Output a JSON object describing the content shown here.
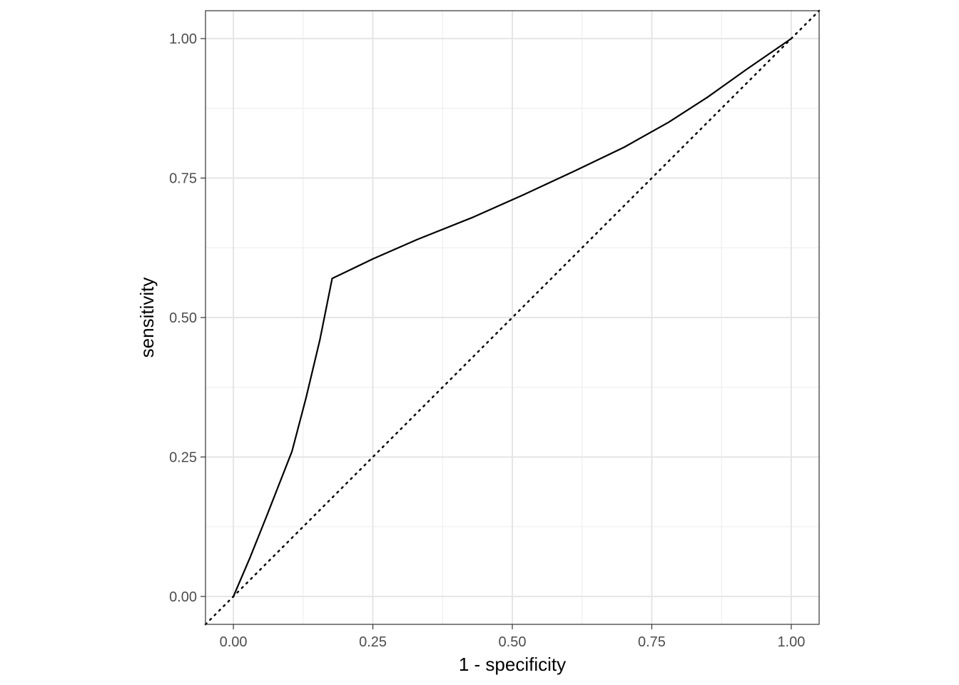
{
  "chart_data": {
    "type": "line",
    "title": "",
    "xlabel": "1 - specificity",
    "ylabel": "sensitivity",
    "xlim": [
      -0.05,
      1.05
    ],
    "ylim": [
      -0.05,
      1.05
    ],
    "grid": true,
    "x_ticks": [
      0,
      0.25,
      0.5,
      0.75,
      1
    ],
    "y_ticks": [
      0,
      0.25,
      0.5,
      0.75,
      1
    ],
    "x_tick_labels": [
      "0.00",
      "0.25",
      "0.50",
      "0.75",
      "1.00"
    ],
    "y_tick_labels": [
      "0.00",
      "0.25",
      "0.50",
      "0.75",
      "1.00"
    ],
    "series": [
      {
        "style": "solid",
        "color": "#000000",
        "x": [
          0.0,
          0.03,
          0.06,
          0.105,
          0.13,
          0.155,
          0.177,
          0.25,
          0.33,
          0.43,
          0.52,
          0.61,
          0.7,
          0.78,
          0.85,
          0.92,
          1.0
        ],
        "y": [
          0.0,
          0.07,
          0.145,
          0.26,
          0.355,
          0.46,
          0.57,
          0.605,
          0.64,
          0.68,
          0.72,
          0.762,
          0.805,
          0.85,
          0.895,
          0.945,
          1.0
        ]
      },
      {
        "style": "dotted",
        "color": "#000000",
        "x": [
          -0.05,
          1.05
        ],
        "y": [
          -0.05,
          1.05
        ]
      }
    ]
  }
}
